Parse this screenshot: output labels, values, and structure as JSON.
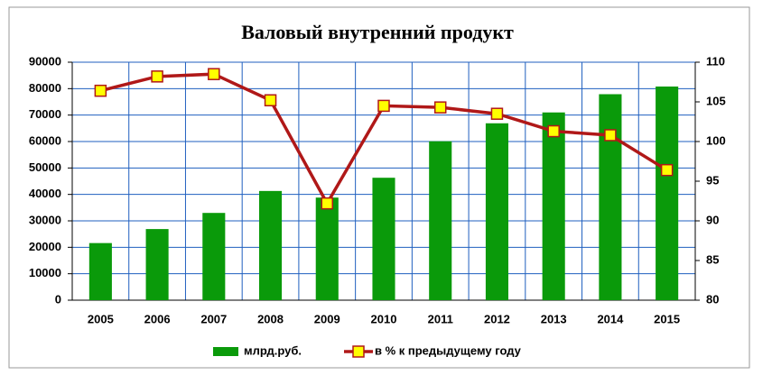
{
  "chart_data": {
    "type": "bar",
    "title": "Валовый внутренний продукт",
    "categories": [
      "2005",
      "2006",
      "2007",
      "2008",
      "2009",
      "2010",
      "2011",
      "2012",
      "2013",
      "2014",
      "2015"
    ],
    "series": [
      {
        "name": "млрд.руб.",
        "type": "bar",
        "color": "#0a9a0a",
        "values": [
          21600,
          26900,
          33000,
          41300,
          38800,
          46300,
          60100,
          66900,
          71000,
          77900,
          80800
        ]
      },
      {
        "name": "в % к предыдущему году",
        "type": "line",
        "axis": "y2",
        "color": "#b01818",
        "marker_color": "#ffff00",
        "values": [
          106.4,
          108.2,
          108.5,
          105.2,
          92.2,
          104.5,
          104.3,
          103.5,
          101.3,
          100.8,
          96.4
        ]
      }
    ],
    "ylim": [
      0,
      90000
    ],
    "yticks": [
      0,
      10000,
      20000,
      30000,
      40000,
      50000,
      60000,
      70000,
      80000,
      90000
    ],
    "y2lim": [
      80,
      110
    ],
    "y2ticks": [
      80,
      85,
      90,
      95,
      100,
      105,
      110
    ],
    "grid": true,
    "grid_color": "#1f5fbf",
    "legend": "bottom"
  }
}
